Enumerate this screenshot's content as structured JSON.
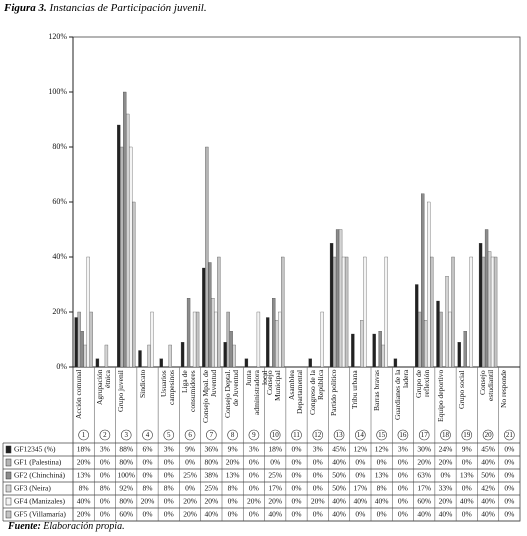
{
  "chart_data": {
    "type": "bar",
    "figure_label": "Figura 3.",
    "title": "Instancias de Participación juvenil.",
    "source_label": "Fuente:",
    "source": "Elaboración propia.",
    "categories": [
      "Acción comunal",
      "Agrupación étnica",
      "Grupo juvenil",
      "Sindicato",
      "Usuarios campesinos",
      "Liga de consumidores",
      "Consejo Mpal. de Juventud",
      "Consejo Deptal. de Juventud",
      "Junta administradora local",
      "Consejo Municipal",
      "Asamblea Departamental",
      "Congreso de la República",
      "Partido político",
      "Tribu urbana",
      "Barras bravas",
      "Guardianes de la ladera",
      "Grupo de reflexión",
      "Equipo deportivo",
      "Grupo social",
      "Consejo estudiantil",
      "No responde"
    ],
    "category_numbers": [
      1,
      2,
      3,
      4,
      5,
      6,
      7,
      8,
      9,
      10,
      11,
      12,
      13,
      14,
      15,
      16,
      17,
      18,
      19,
      20,
      21
    ],
    "series": [
      {
        "name": "GF12345 (%)",
        "color": "#222222",
        "values": [
          18,
          3,
          88,
          6,
          3,
          9,
          36,
          9,
          3,
          18,
          0,
          3,
          45,
          12,
          12,
          3,
          30,
          24,
          9,
          45,
          0
        ],
        "value_labels": [
          "18%",
          "3%",
          "88%",
          "6%",
          "3%",
          "9%",
          "36%",
          "9%",
          "3%",
          "18%",
          "0%",
          "3%",
          "45%",
          "12%",
          "12%",
          "3%",
          "30%",
          "24%",
          "9%",
          "45%",
          "0%"
        ]
      },
      {
        "name": "GF1 (Palestina)",
        "color": "#b5b5b5",
        "values": [
          20,
          0,
          80,
          0,
          0,
          0,
          80,
          20,
          0,
          0,
          0,
          0,
          40,
          0,
          0,
          0,
          20,
          20,
          0,
          40,
          0
        ],
        "value_labels": [
          "20%",
          "0%",
          "80%",
          "0%",
          "0%",
          "0%",
          "80%",
          "20%",
          "0%",
          "0%",
          "0%",
          "0%",
          "40%",
          "0%",
          "0%",
          "0%",
          "20%",
          "20%",
          "0%",
          "40%",
          "0%"
        ]
      },
      {
        "name": "GF2 (Chinchiná)",
        "color": "#8c8c8c",
        "values": [
          13,
          0,
          100,
          0,
          0,
          25,
          38,
          13,
          0,
          25,
          0,
          0,
          50,
          0,
          13,
          0,
          63,
          0,
          13,
          50,
          0
        ],
        "value_labels": [
          "13%",
          "0%",
          "100%",
          "0%",
          "0%",
          "25%",
          "38%",
          "13%",
          "0%",
          "25%",
          "0%",
          "0%",
          "50%",
          "0%",
          "13%",
          "0%",
          "63%",
          "0%",
          "13%",
          "50%",
          "0%"
        ]
      },
      {
        "name": "GF3 (Neira)",
        "color": "#d4d4d4",
        "values": [
          8,
          8,
          92,
          8,
          8,
          0,
          25,
          8,
          0,
          17,
          0,
          0,
          50,
          17,
          8,
          0,
          17,
          33,
          0,
          42,
          0
        ],
        "value_labels": [
          "8%",
          "8%",
          "92%",
          "8%",
          "8%",
          "0%",
          "25%",
          "8%",
          "0%",
          "17%",
          "0%",
          "0%",
          "50%",
          "17%",
          "8%",
          "0%",
          "17%",
          "33%",
          "0%",
          "42%",
          "0%"
        ]
      },
      {
        "name": "GF4 (Manizales)",
        "color": "#f4f4f4",
        "values": [
          40,
          0,
          80,
          20,
          0,
          20,
          20,
          0,
          20,
          20,
          0,
          20,
          40,
          40,
          40,
          0,
          60,
          20,
          40,
          40,
          0
        ],
        "value_labels": [
          "40%",
          "0%",
          "80%",
          "20%",
          "0%",
          "20%",
          "20%",
          "0%",
          "20%",
          "20%",
          "0%",
          "20%",
          "40%",
          "40%",
          "40%",
          "0%",
          "60%",
          "20%",
          "40%",
          "40%",
          "0%"
        ]
      },
      {
        "name": "GF5 (Villamaría)",
        "color": "#c4c4c4",
        "values": [
          20,
          0,
          60,
          0,
          0,
          20,
          40,
          0,
          0,
          40,
          0,
          0,
          40,
          0,
          0,
          0,
          40,
          40,
          0,
          40,
          0
        ],
        "value_labels": [
          "20%",
          "0%",
          "60%",
          "0%",
          "0%",
          "20%",
          "40%",
          "0%",
          "0%",
          "40%",
          "0%",
          "0%",
          "40%",
          "0%",
          "0%",
          "0%",
          "40%",
          "40%",
          "0%",
          "40%",
          "0%"
        ]
      }
    ],
    "ylim": [
      0,
      120
    ],
    "yticks": [
      {
        "value": 0,
        "label": "0%"
      },
      {
        "value": 20,
        "label": "20%"
      },
      {
        "value": 40,
        "label": "40%"
      },
      {
        "value": 60,
        "label": "60%"
      },
      {
        "value": 80,
        "label": "80%"
      },
      {
        "value": 100,
        "label": "100%"
      },
      {
        "value": 120,
        "label": "120%"
      }
    ],
    "grid": false
  }
}
